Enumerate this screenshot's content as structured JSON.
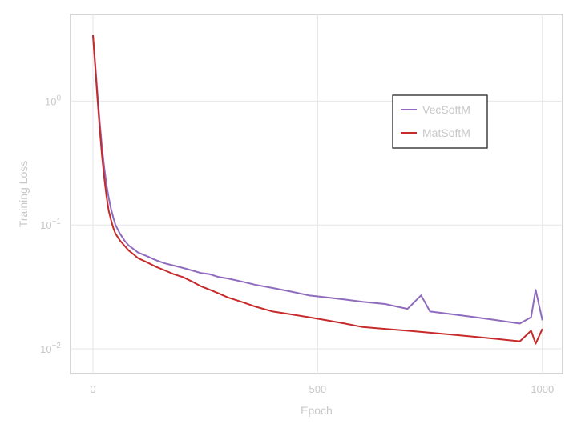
{
  "chart_data": {
    "type": "line",
    "xlabel": "Epoch",
    "ylabel": "Training Loss",
    "xlim": [
      -50,
      1045
    ],
    "ylim_log10": [
      -2.2,
      0.7
    ],
    "yscale": "log",
    "grid": true,
    "legend_position": "top-right",
    "x_ticks": [
      0,
      500,
      1000
    ],
    "y_ticks": [
      {
        "value": 1,
        "base": "10",
        "exp": "0"
      },
      {
        "value": 0.1,
        "base": "10",
        "exp": "−1"
      },
      {
        "value": 0.01,
        "base": "10",
        "exp": "−2"
      }
    ],
    "series": [
      {
        "name": "VecSoftM",
        "color": "#8e6bbd",
        "x": [
          0,
          5,
          10,
          15,
          20,
          25,
          30,
          35,
          40,
          45,
          50,
          60,
          70,
          80,
          90,
          100,
          120,
          140,
          160,
          180,
          200,
          220,
          240,
          260,
          280,
          300,
          330,
          360,
          400,
          440,
          480,
          520,
          560,
          600,
          650,
          700,
          730,
          750,
          800,
          850,
          900,
          950,
          975,
          985,
          1000
        ],
        "y": [
          3.4,
          2.0,
          1.15,
          0.68,
          0.42,
          0.29,
          0.21,
          0.165,
          0.135,
          0.115,
          0.1,
          0.085,
          0.075,
          0.068,
          0.064,
          0.06,
          0.056,
          0.052,
          0.049,
          0.047,
          0.045,
          0.043,
          0.041,
          0.04,
          0.038,
          0.037,
          0.035,
          0.033,
          0.031,
          0.029,
          0.027,
          0.026,
          0.025,
          0.024,
          0.023,
          0.021,
          0.027,
          0.02,
          0.019,
          0.018,
          0.017,
          0.016,
          0.018,
          0.03,
          0.017
        ]
      },
      {
        "name": "MatSoftM",
        "color": "#c62a2a",
        "x": [
          0,
          5,
          10,
          15,
          20,
          25,
          30,
          35,
          40,
          45,
          50,
          60,
          70,
          80,
          90,
          100,
          120,
          140,
          160,
          180,
          200,
          220,
          240,
          260,
          280,
          300,
          330,
          360,
          400,
          440,
          480,
          520,
          560,
          600,
          650,
          700,
          750,
          800,
          850,
          900,
          950,
          975,
          985,
          1000
        ],
        "y": [
          3.4,
          1.9,
          1.05,
          0.6,
          0.36,
          0.24,
          0.17,
          0.13,
          0.11,
          0.095,
          0.085,
          0.075,
          0.068,
          0.062,
          0.058,
          0.054,
          0.05,
          0.046,
          0.043,
          0.04,
          0.038,
          0.035,
          0.032,
          0.03,
          0.028,
          0.026,
          0.024,
          0.022,
          0.02,
          0.019,
          0.018,
          0.017,
          0.016,
          0.015,
          0.0145,
          0.014,
          0.0135,
          0.013,
          0.0125,
          0.012,
          0.0115,
          0.014,
          0.011,
          0.0145
        ]
      }
    ]
  }
}
